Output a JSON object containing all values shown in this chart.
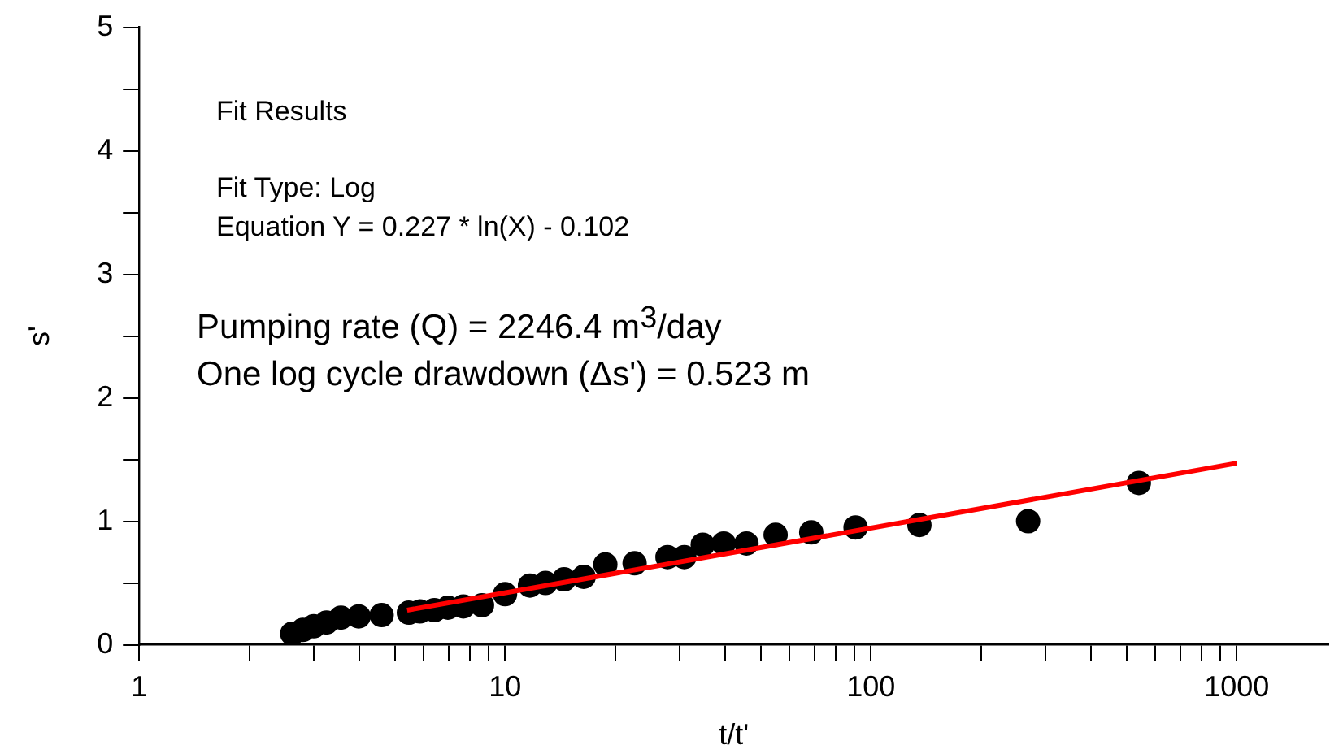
{
  "chart_data": {
    "type": "scatter",
    "xlabel": "t/t'",
    "ylabel": "s'",
    "log": "x",
    "grid": false,
    "legend": false,
    "annotations": [
      "Fit Results",
      "Fit Type: Log",
      "Equation Y = 0.227 * ln(X) - 0.102",
      "Pumping rate (Q) = 2246.4 m$^{3}$/day",
      "One log cycle drawdown (Δs') = 0.523 m"
    ],
    "xlim": [
      1,
      1780
    ],
    "ylim": [
      0,
      5
    ],
    "xticks": [
      1,
      {
        "value": 2,
        "label": null
      },
      {
        "value": 3,
        "label": null
      },
      {
        "value": 4,
        "label": null
      },
      {
        "value": 5,
        "label": null
      },
      {
        "value": 6,
        "label": null
      },
      {
        "value": 7,
        "label": null
      },
      {
        "value": 8,
        "label": null
      },
      {
        "value": 9,
        "label": null
      },
      10,
      {
        "value": 20,
        "label": null
      },
      {
        "value": 30,
        "label": null
      },
      {
        "value": 40,
        "label": null
      },
      {
        "value": 50,
        "label": null
      },
      {
        "value": 60,
        "label": null
      },
      {
        "value": 70,
        "label": null
      },
      {
        "value": 80,
        "label": null
      },
      {
        "value": 90,
        "label": null
      },
      100,
      {
        "value": 200,
        "label": null
      },
      {
        "value": 300,
        "label": null
      },
      {
        "value": 400,
        "label": null
      },
      {
        "value": 500,
        "label": null
      },
      {
        "value": 600,
        "label": null
      },
      {
        "value": 700,
        "label": null
      },
      {
        "value": 800,
        "label": null
      },
      {
        "value": 900,
        "label": null
      },
      1000
    ],
    "yticks": [
      0,
      {
        "value": 0.5,
        "label": null
      },
      1,
      {
        "value": 1.5,
        "label": null
      },
      2,
      {
        "value": 2.5,
        "label": null
      },
      3,
      {
        "value": 3.5,
        "label": null
      },
      4,
      {
        "value": 4.5,
        "label": null
      },
      5
    ],
    "series": [
      {
        "color": "#000000",
        "marker": "circle",
        "x": [
          2.62,
          2.8,
          3.0,
          3.25,
          3.56,
          3.98,
          4.6,
          5.46,
          5.85,
          6.41,
          6.98,
          7.69,
          8.65,
          10,
          11.7,
          12.9,
          14.5,
          16.4,
          18.8,
          22.6,
          27.8,
          30.9,
          34.7,
          39.6,
          45.7,
          54.9,
          68.7,
          90.8,
          135.7,
          269,
          540
        ],
        "values": [
          0.09,
          0.12,
          0.15,
          0.18,
          0.22,
          0.23,
          0.24,
          0.26,
          0.27,
          0.28,
          0.3,
          0.31,
          0.32,
          0.41,
          0.48,
          0.5,
          0.53,
          0.55,
          0.65,
          0.66,
          0.71,
          0.71,
          0.81,
          0.82,
          0.82,
          0.89,
          0.91,
          0.95,
          0.97,
          1.0,
          1.31
        ]
      },
      {
        "type": "line",
        "color": "#ff0000",
        "marker": "none",
        "line_style": "solid",
        "x": [
          5.4,
          1000
        ],
        "values": [
          0.28,
          1.47
        ]
      }
    ]
  }
}
